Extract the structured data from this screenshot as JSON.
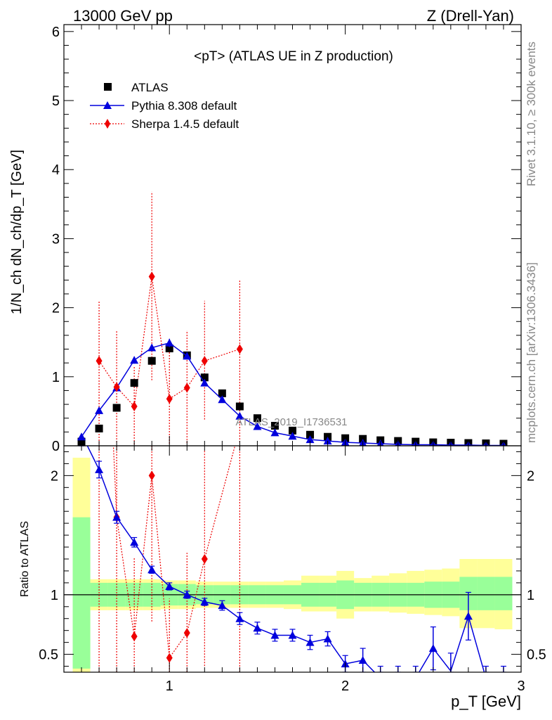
{
  "header": {
    "left": "13000 GeV pp",
    "right": "Z (Drell-Yan)"
  },
  "side_text": {
    "top": "Rivet 3.1.10, ≥ 300k events",
    "bottom": "mcplots.cern.ch [arXiv:1306.3436]"
  },
  "chart_data": {
    "type": "line",
    "title": "<pT> (ATLAS UE in Z production)",
    "watermark": "ATLAS_2019_I1736531",
    "xlabel": "p_T [GeV]",
    "ylabel": "1/N_ch dN_ch/dp_T [GeV]",
    "ratio_ylabel": "Ratio to ATLAS",
    "xlim": [
      0.4,
      3.0
    ],
    "ylim": [
      0,
      6.1
    ],
    "ratio_ylim": [
      0.35,
      2.25
    ],
    "x_ticks": [
      1,
      2,
      3
    ],
    "y_ticks": [
      0,
      1,
      2,
      3,
      4,
      5,
      6
    ],
    "ratio_y_ticks": [
      0.5,
      1,
      2
    ],
    "legend_position": "top-left",
    "x": [
      0.5,
      0.6,
      0.7,
      0.8,
      0.9,
      1.0,
      1.1,
      1.2,
      1.3,
      1.4,
      1.5,
      1.6,
      1.7,
      1.8,
      1.9,
      2.0,
      2.1,
      2.2,
      2.3,
      2.4,
      2.5,
      2.6,
      2.7,
      2.8,
      2.9
    ],
    "series": [
      {
        "name": "ATLAS",
        "color": "#000000",
        "marker": "square",
        "values": [
          0.06,
          0.25,
          0.55,
          0.91,
          1.23,
          1.41,
          1.31,
          0.99,
          0.76,
          0.57,
          0.4,
          0.29,
          0.22,
          0.16,
          0.13,
          0.11,
          0.1,
          0.08,
          0.07,
          0.06,
          0.05,
          0.045,
          0.04,
          0.035,
          0.03
        ]
      },
      {
        "name": "Pythia 8.308 default",
        "color": "#0000dd",
        "marker": "triangle",
        "values": [
          0.13,
          0.51,
          0.84,
          1.24,
          1.42,
          1.49,
          1.3,
          0.91,
          0.67,
          0.43,
          0.28,
          0.19,
          0.14,
          0.09,
          0.07,
          0.05,
          0.04,
          0.03,
          0.02,
          0.015,
          0.015,
          0.01,
          0.01,
          0.005,
          0.005
        ],
        "errors": [
          0.02,
          0.03,
          0.04,
          0.05,
          0.05,
          0.06,
          0.05,
          0.04,
          0.03,
          0.03,
          0.02,
          0.02,
          0.02,
          0.01,
          0.01,
          0.01,
          0.01,
          0.01,
          0.01,
          0.01,
          0.01,
          0.01,
          0.01,
          0.01,
          0.01
        ],
        "ratio": [
          2.35,
          2.05,
          1.65,
          1.44,
          1.21,
          1.07,
          1.0,
          0.94,
          0.91,
          0.8,
          0.72,
          0.66,
          0.66,
          0.6,
          0.63,
          0.42,
          0.45,
          0.3,
          0.3,
          0.3,
          0.55,
          0.36,
          0.82,
          0.3,
          0.3
        ],
        "ratio_errors": [
          0.1,
          0.07,
          0.05,
          0.04,
          0.03,
          0.03,
          0.03,
          0.03,
          0.04,
          0.05,
          0.05,
          0.05,
          0.05,
          0.06,
          0.06,
          0.07,
          0.1,
          0.1,
          0.1,
          0.1,
          0.18,
          0.15,
          0.2,
          0.1,
          0.1
        ]
      },
      {
        "name": "Sherpa 1.4.5 default",
        "color": "#ee0000",
        "marker": "diamond",
        "x": [
          0.6,
          0.7,
          0.8,
          0.9,
          1.0,
          1.1,
          1.2,
          1.4
        ],
        "values": [
          1.23,
          0.85,
          0.57,
          2.45,
          0.68,
          0.84,
          1.23,
          1.4
        ],
        "err_low": [
          1.2,
          0.8,
          0.55,
          1.5,
          0.65,
          0.8,
          0.85,
          1.35
        ],
        "err_high": [
          0.87,
          0.82,
          0.58,
          1.23,
          0.72,
          0.83,
          0.87,
          1.0
        ],
        "ratio": [
          4.9,
          1.65,
          0.65,
          2.0,
          0.47,
          0.68,
          1.3,
          2.4
        ]
      }
    ],
    "ratio_bands": {
      "inner_color": "#99ff99",
      "outer_color": "#ffff99",
      "inner": [
        [
          0.38,
          1.65
        ],
        [
          0.9,
          1.1
        ],
        [
          0.9,
          1.1
        ],
        [
          0.9,
          1.1
        ],
        [
          0.9,
          1.1
        ],
        [
          0.91,
          1.09
        ],
        [
          0.91,
          1.09
        ],
        [
          0.92,
          1.08
        ],
        [
          0.92,
          1.08
        ],
        [
          0.92,
          1.08
        ],
        [
          0.92,
          1.08
        ],
        [
          0.92,
          1.08
        ],
        [
          0.92,
          1.08
        ],
        [
          0.9,
          1.1
        ],
        [
          0.9,
          1.1
        ],
        [
          0.88,
          1.12
        ],
        [
          0.9,
          1.1
        ],
        [
          0.9,
          1.1
        ],
        [
          0.9,
          1.1
        ],
        [
          0.9,
          1.1
        ],
        [
          0.89,
          1.11
        ],
        [
          0.89,
          1.11
        ],
        [
          0.87,
          1.15
        ],
        [
          0.87,
          1.15
        ],
        [
          0.87,
          1.15
        ]
      ],
      "outer": [
        [
          0.35,
          2.15
        ],
        [
          0.87,
          1.13
        ],
        [
          0.87,
          1.13
        ],
        [
          0.87,
          1.13
        ],
        [
          0.87,
          1.13
        ],
        [
          0.88,
          1.12
        ],
        [
          0.88,
          1.12
        ],
        [
          0.89,
          1.11
        ],
        [
          0.89,
          1.11
        ],
        [
          0.89,
          1.11
        ],
        [
          0.89,
          1.11
        ],
        [
          0.89,
          1.11
        ],
        [
          0.88,
          1.12
        ],
        [
          0.86,
          1.16
        ],
        [
          0.86,
          1.16
        ],
        [
          0.8,
          1.2
        ],
        [
          0.86,
          1.14
        ],
        [
          0.86,
          1.16
        ],
        [
          0.85,
          1.18
        ],
        [
          0.84,
          1.2
        ],
        [
          0.83,
          1.21
        ],
        [
          0.82,
          1.22
        ],
        [
          0.72,
          1.3
        ],
        [
          0.72,
          1.3
        ],
        [
          0.71,
          1.3
        ]
      ]
    }
  }
}
